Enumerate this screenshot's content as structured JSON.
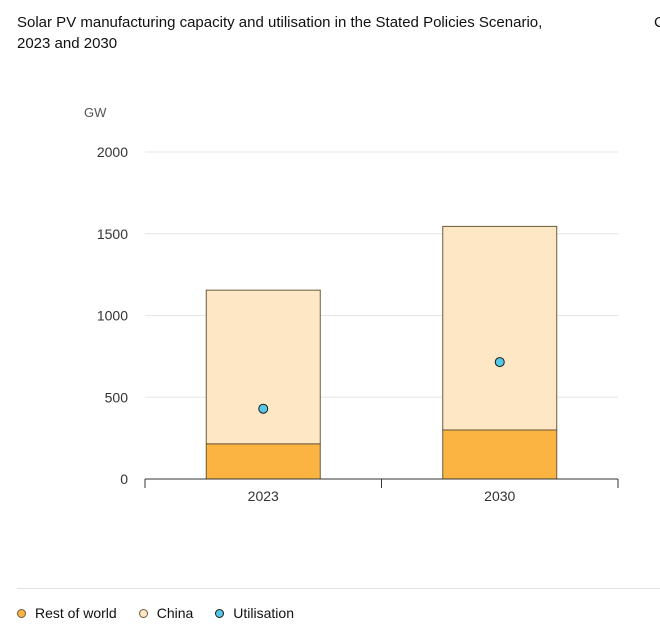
{
  "title": "Solar PV manufacturing capacity and utilisation in the Stated Policies Scenario, 2023 and 2030",
  "clipped_next_title_char": "C",
  "chart_data": {
    "type": "bar",
    "stacked": true,
    "categories": [
      "2023",
      "2030"
    ],
    "series": [
      {
        "name": "Rest of world",
        "values": [
          215,
          300
        ],
        "color": "#fbb441",
        "stroke": "#6b5a3a"
      },
      {
        "name": "China",
        "values": [
          940,
          1245
        ],
        "color": "#fde7c5",
        "stroke": "#6b5a3a"
      }
    ],
    "overlay_series": [
      {
        "name": "Utilisation",
        "type": "scatter",
        "values": [
          430,
          715
        ],
        "color": "#54c8e8",
        "stroke": "#1a1a1a"
      }
    ],
    "ylabel": "GW",
    "ylim": [
      0,
      2000
    ],
    "yticks": [
      0,
      500,
      1000,
      1500,
      2000
    ],
    "grid": true,
    "legend": "bottom-left"
  },
  "legend_colors": {
    "rest_of_world": "#fbb441",
    "china": "#fde7c5",
    "utilisation": "#54c8e8"
  }
}
